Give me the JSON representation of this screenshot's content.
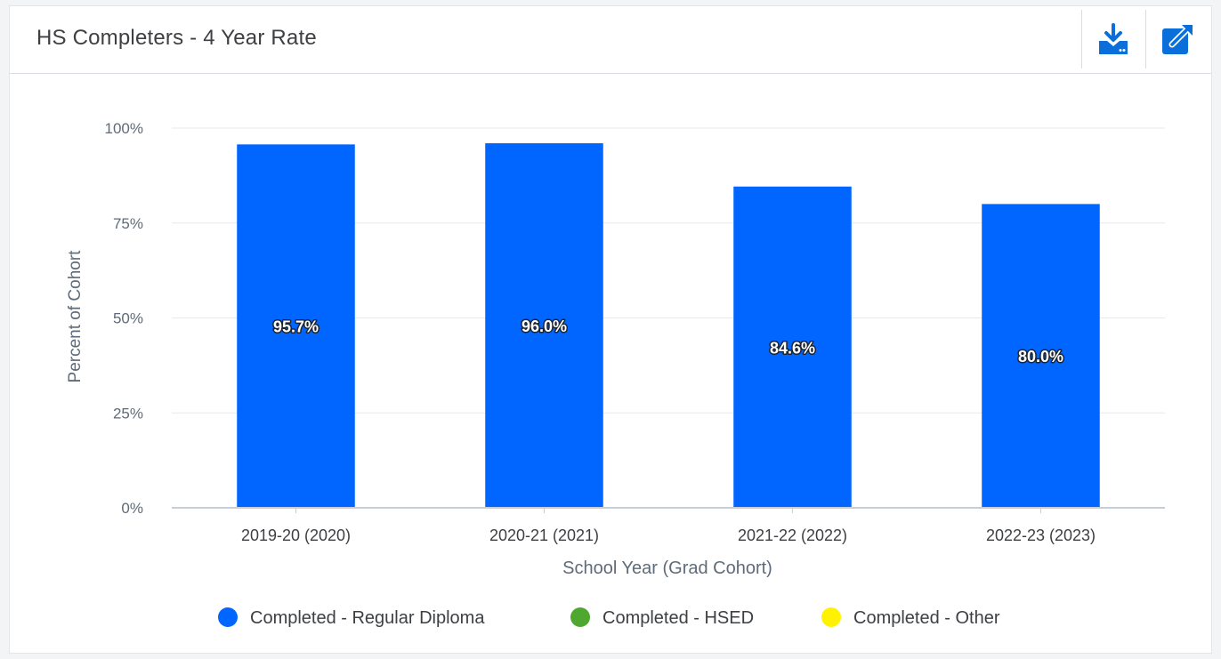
{
  "header": {
    "title": "HS Completers - 4 Year Rate",
    "actions": [
      {
        "name": "download",
        "icon": "download-icon"
      },
      {
        "name": "open-in-new-window",
        "icon": "external-link-icon"
      }
    ]
  },
  "colors": {
    "regular_diploma": "#0066ff",
    "hsed": "#4ea72e",
    "other": "#fff200",
    "accent": "#0a6fd8"
  },
  "chart_data": {
    "type": "bar",
    "xlabel": "School Year (Grad Cohort)",
    "ylabel": "Percent of Cohort",
    "ylim": [
      0,
      100
    ],
    "yticks": [
      "0%",
      "25%",
      "50%",
      "75%",
      "100%"
    ],
    "grid": true,
    "legend_position": "bottom",
    "categories": [
      "2019-20 (2020)",
      "2020-21 (2021)",
      "2021-22 (2022)",
      "2022-23 (2023)"
    ],
    "series": [
      {
        "name": "Completed - Regular Diploma",
        "color": "#0066ff",
        "values": [
          95.7,
          96.0,
          84.6,
          80.0
        ],
        "labels": [
          "95.7%",
          "96.0%",
          "84.6%",
          "80.0%"
        ]
      },
      {
        "name": "Completed - HSED",
        "color": "#4ea72e",
        "values": [
          0,
          0,
          0,
          0
        ]
      },
      {
        "name": "Completed - Other",
        "color": "#fff200",
        "values": [
          0,
          0,
          0,
          0
        ]
      }
    ]
  }
}
